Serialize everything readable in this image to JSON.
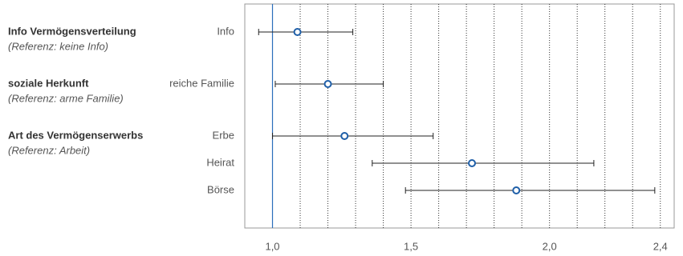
{
  "chart_data": {
    "type": "forest",
    "groups": [
      {
        "title": "Info Vermögensverteilung",
        "reference": "(Referenz: keine Info)",
        "categories": [
          "Info"
        ],
        "values": [
          1.09
        ],
        "lower": [
          0.95
        ],
        "upper": [
          1.29
        ]
      },
      {
        "title": "soziale Herkunft",
        "reference": "(Referenz: arme Familie)",
        "categories": [
          "reiche Familie"
        ],
        "values": [
          1.2
        ],
        "lower": [
          1.01
        ],
        "upper": [
          1.4
        ]
      },
      {
        "title": "Art des Vermögenserwerbs",
        "reference": "(Referenz: Arbeit)",
        "categories": [
          "Erbe",
          "Heirat",
          "Börse"
        ],
        "values": [
          1.26,
          1.72,
          1.88
        ],
        "lower": [
          1.0,
          1.36,
          1.48
        ],
        "upper": [
          1.58,
          2.16,
          2.38
        ]
      }
    ],
    "xlim": [
      0.9,
      2.45
    ],
    "xticks": [
      {
        "value": 1.0,
        "label": "1,0"
      },
      {
        "value": 1.5,
        "label": "1,5"
      },
      {
        "value": 2.0,
        "label": "2,0"
      },
      {
        "value": 2.4,
        "label": "2,4"
      }
    ],
    "xgrid": [
      1.1,
      1.2,
      1.3,
      1.4,
      1.5,
      1.6,
      1.7,
      1.8,
      1.9,
      2.0,
      2.1,
      2.2,
      2.3,
      2.4
    ],
    "reference_line": 1.0,
    "reference_color": "#2a6ebb",
    "point_color": "#1f5fa8"
  }
}
